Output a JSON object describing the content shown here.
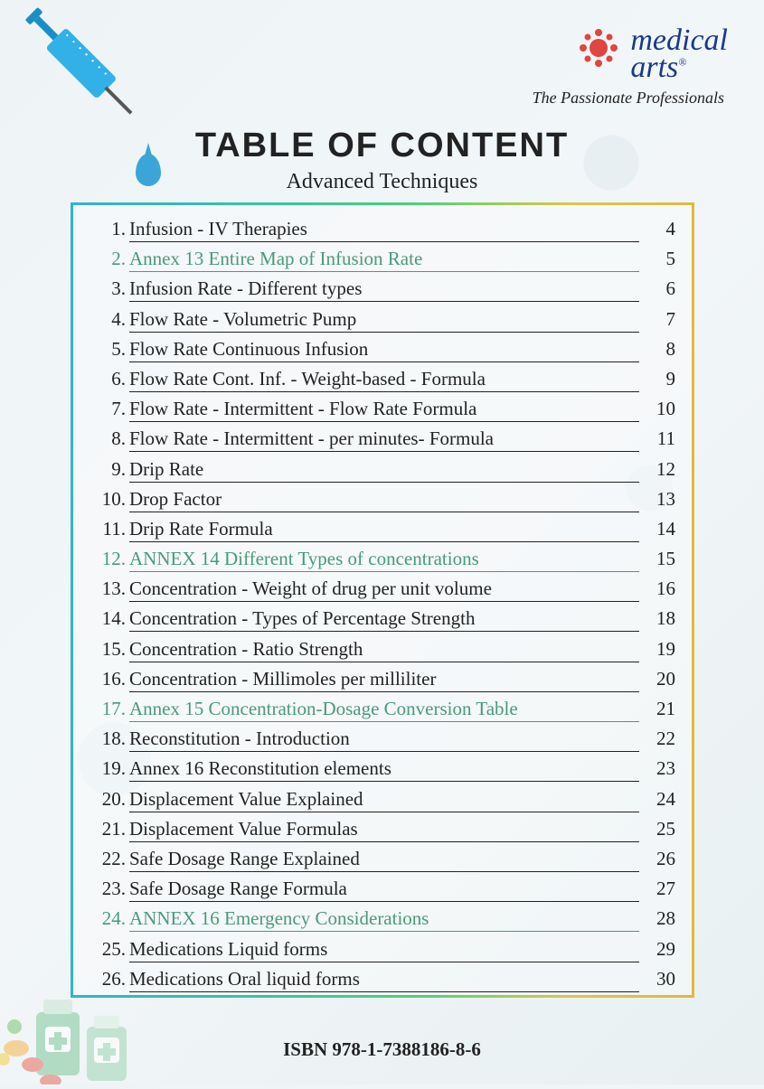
{
  "logo": {
    "line1": "medical",
    "line2": "arts",
    "registered": "®",
    "tagline": "The Passionate Professionals",
    "splat_color": "#e0453f",
    "text_color": "#1a3a8a"
  },
  "title": "TABLE OF CONTENT",
  "subtitle": "Advanced Techniques",
  "isbn": "ISBN 978-1-7388186-8-6",
  "toc_box": {
    "border_gradient": [
      "#2fb5c9",
      "#35c6a2",
      "#4bd07a",
      "#d9c844",
      "#e0b93e"
    ],
    "annex_color": "#4a9a7a",
    "text_color": "#222222",
    "font_family": "handwriting",
    "row_fontsize": 21
  },
  "items": [
    {
      "n": "1.",
      "title": "Infusion - IV Therapies",
      "page": "4",
      "annex": false
    },
    {
      "n": "2.",
      "title": "Annex 13 Entire Map of Infusion Rate",
      "page": "5",
      "annex": true
    },
    {
      "n": "3.",
      "title": "Infusion Rate - Different types",
      "page": "6",
      "annex": false
    },
    {
      "n": "4.",
      "title": "Flow Rate - Volumetric Pump",
      "page": "7",
      "annex": false
    },
    {
      "n": "5.",
      "title": "Flow Rate Continuous Infusion",
      "page": "8",
      "annex": false
    },
    {
      "n": "6.",
      "title": "Flow Rate Cont. Inf. - Weight-based - Formula",
      "page": "9",
      "annex": false
    },
    {
      "n": "7.",
      "title": "Flow Rate - Intermittent - Flow Rate Formula",
      "page": "10",
      "annex": false
    },
    {
      "n": "8.",
      "title": "Flow Rate - Intermittent - per minutes- Formula",
      "page": "11",
      "annex": false
    },
    {
      "n": "9.",
      "title": "Drip Rate",
      "page": "12",
      "annex": false
    },
    {
      "n": "10.",
      "title": "Drop Factor",
      "page": "13",
      "annex": false
    },
    {
      "n": "11.",
      "title": "Drip Rate Formula",
      "page": "14",
      "annex": false
    },
    {
      "n": "12.",
      "title": "ANNEX 14 Different Types of concentrations",
      "page": "15",
      "annex": true
    },
    {
      "n": "13.",
      "title": "Concentration - Weight of drug per unit volume",
      "page": "16",
      "annex": false
    },
    {
      "n": "14.",
      "title": "Concentration - Types of Percentage Strength",
      "page": "18",
      "annex": false
    },
    {
      "n": "15.",
      "title": "Concentration - Ratio Strength",
      "page": "19",
      "annex": false
    },
    {
      "n": "16.",
      "title": "Concentration - Millimoles per milliliter",
      "page": "20",
      "annex": false
    },
    {
      "n": "17.",
      "title": "Annex 15 Concentration-Dosage Conversion Table",
      "page": "21",
      "annex": true
    },
    {
      "n": "18.",
      "title": "Reconstitution - Introduction",
      "page": "22",
      "annex": false
    },
    {
      "n": "19.",
      "title": "Annex 16 Reconstitution elements",
      "page": "23",
      "annex": false
    },
    {
      "n": "20.",
      "title": "Displacement Value Explained",
      "page": "24",
      "annex": false
    },
    {
      "n": "21.",
      "title": "Displacement Value Formulas",
      "page": "25",
      "annex": false
    },
    {
      "n": "22.",
      "title": "Safe Dosage Range Explained",
      "page": "26",
      "annex": false
    },
    {
      "n": "23.",
      "title": "Safe Dosage Range Formula",
      "page": "27",
      "annex": false
    },
    {
      "n": "24.",
      "title": "ANNEX 16 Emergency Considerations",
      "page": "28",
      "annex": true
    },
    {
      "n": "25.",
      "title": "Medications Liquid forms",
      "page": "29",
      "annex": false
    },
    {
      "n": "26.",
      "title": "Medications Oral liquid forms",
      "page": "30",
      "annex": false
    }
  ]
}
